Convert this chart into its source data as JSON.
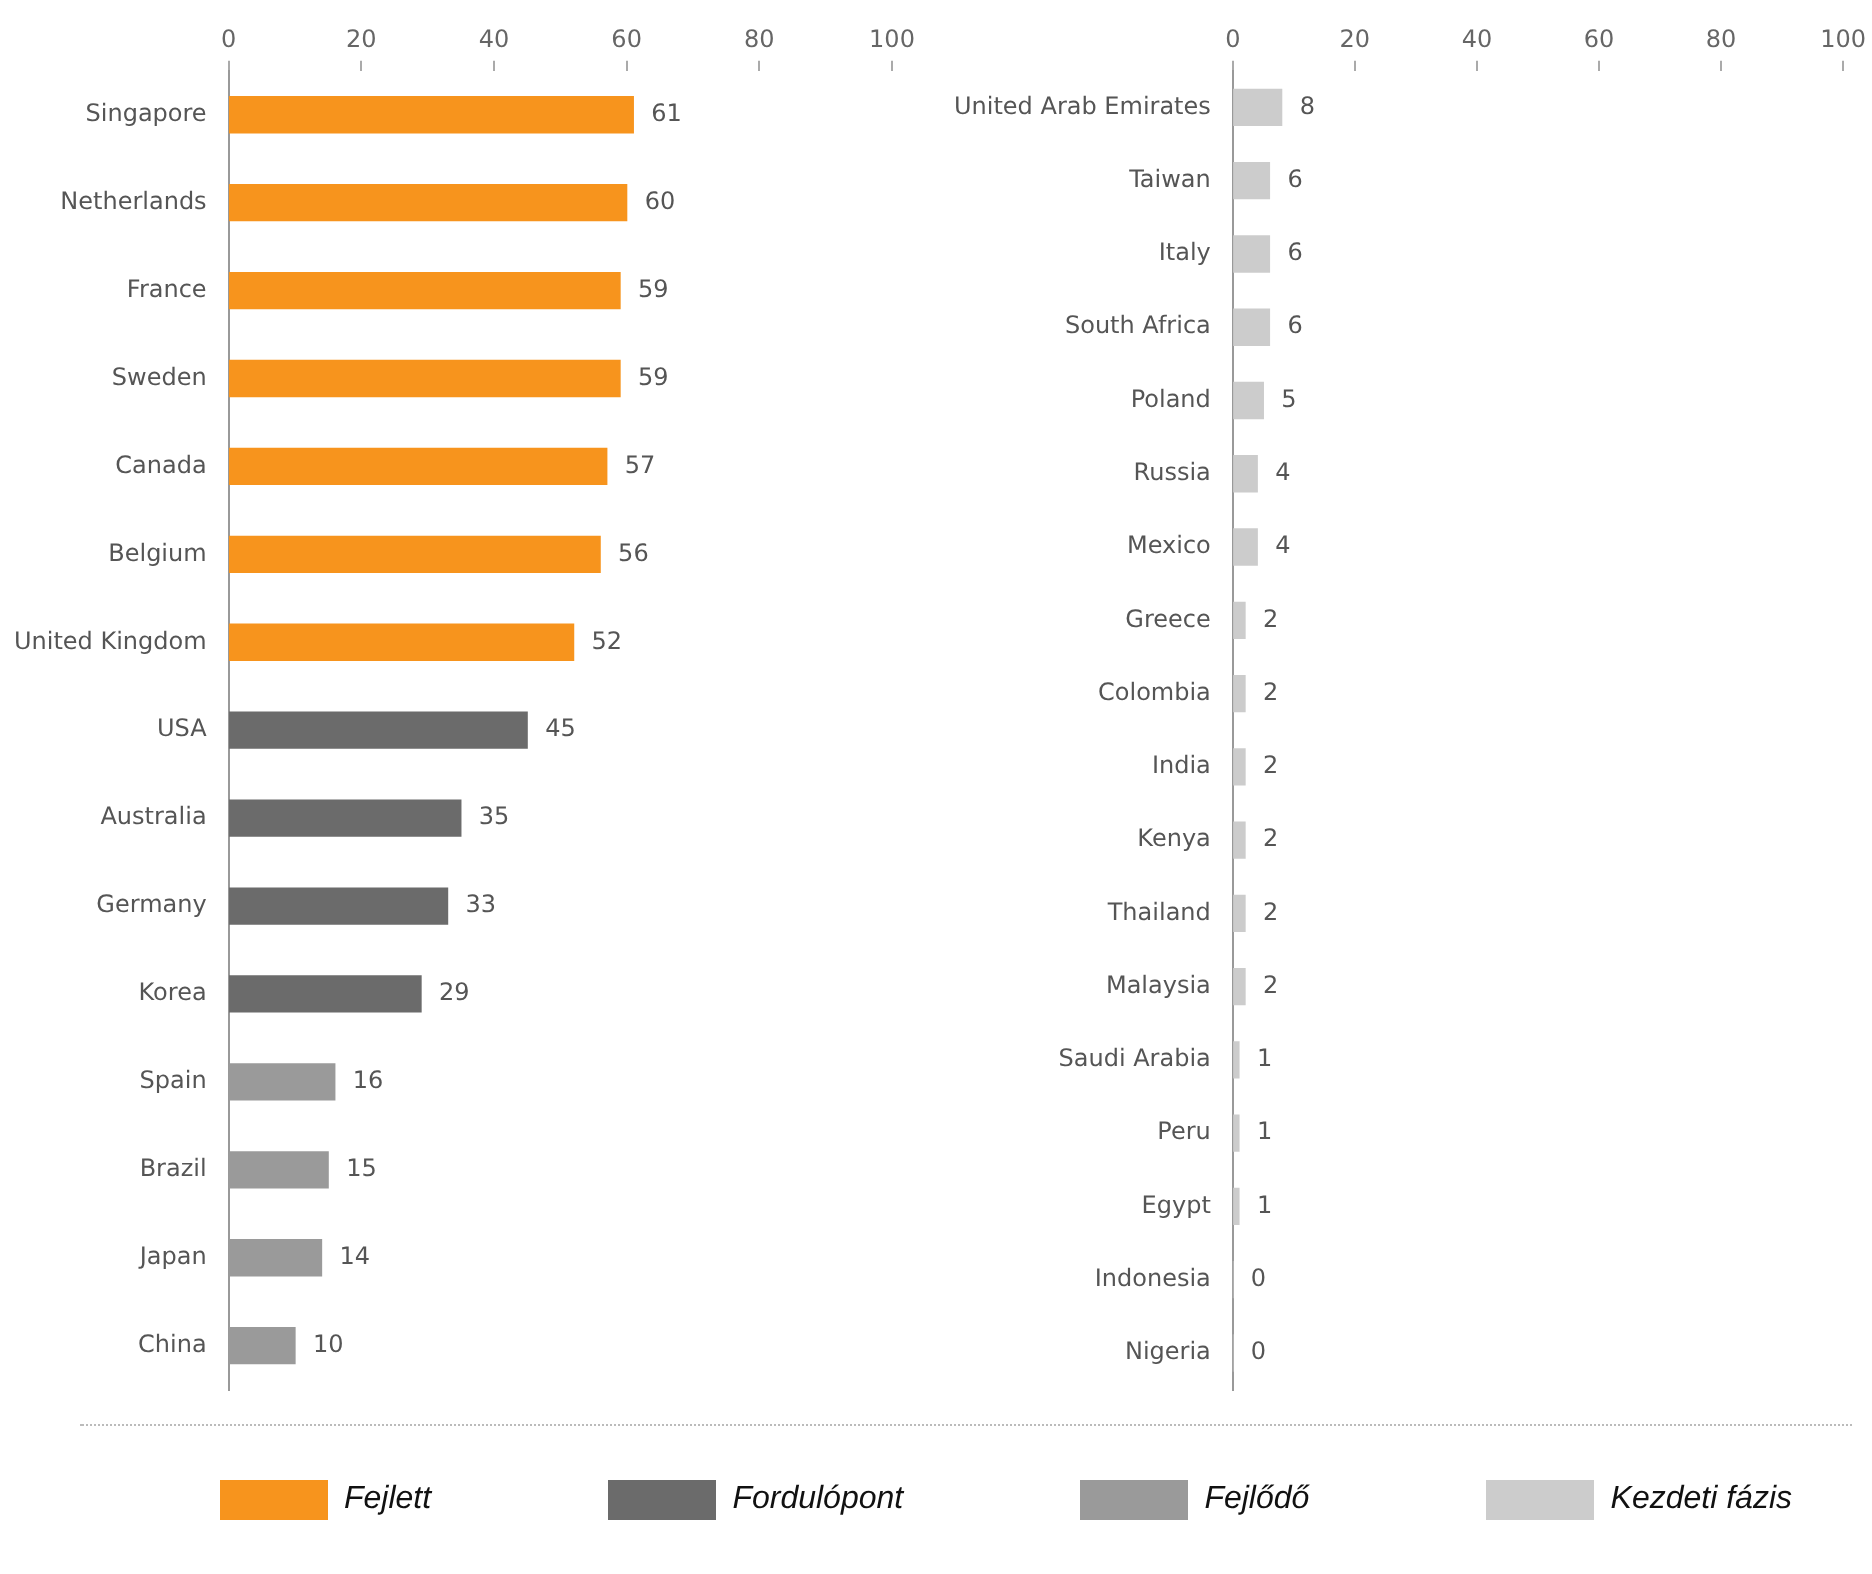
{
  "chart_data": [
    {
      "type": "bar",
      "orientation": "horizontal",
      "categories": [
        "Singapore",
        "Netherlands",
        "France",
        "Sweden",
        "Canada",
        "Belgium",
        "United Kingdom",
        "USA",
        "Australia",
        "Germany",
        "Korea",
        "Spain",
        "Brazil",
        "Japan",
        "China"
      ],
      "series": [
        {
          "name": "Fejlett",
          "color": "#f7941d",
          "values": [
            61,
            60,
            59,
            59,
            57,
            56,
            52,
            null,
            null,
            null,
            null,
            null,
            null,
            null,
            null
          ]
        },
        {
          "name": "Fordulópont",
          "color": "#6b6b6b",
          "values": [
            null,
            null,
            null,
            null,
            null,
            null,
            null,
            45,
            35,
            33,
            29,
            null,
            null,
            null,
            null
          ]
        },
        {
          "name": "Fejlődő",
          "color": "#9a9a9a",
          "values": [
            null,
            null,
            null,
            null,
            null,
            null,
            null,
            null,
            null,
            null,
            null,
            16,
            15,
            14,
            10
          ]
        }
      ],
      "xlim": [
        0,
        100
      ],
      "xticks": [
        0,
        20,
        40,
        60,
        80,
        100
      ],
      "grid": false,
      "data_labels": true,
      "legend": "bottom"
    },
    {
      "type": "bar",
      "orientation": "horizontal",
      "categories": [
        "United Arab Emirates",
        "Taiwan",
        "Italy",
        "South Africa",
        "Poland",
        "Russia",
        "Mexico",
        "Greece",
        "Colombia",
        "India",
        "Kenya",
        "Thailand",
        "Malaysia",
        "Saudi Arabia",
        "Peru",
        "Egypt",
        "Indonesia",
        "Nigeria"
      ],
      "series": [
        {
          "name": "Kezdeti fázis",
          "color": "#cccccc",
          "values": [
            8,
            6,
            6,
            6,
            5,
            4,
            4,
            2,
            2,
            2,
            2,
            2,
            2,
            1,
            1,
            1,
            0,
            0
          ]
        }
      ],
      "xlim": [
        0,
        100
      ],
      "xticks": [
        0,
        20,
        40,
        60,
        80,
        100
      ],
      "grid": false,
      "data_labels": true,
      "legend": "bottom"
    }
  ]
}
